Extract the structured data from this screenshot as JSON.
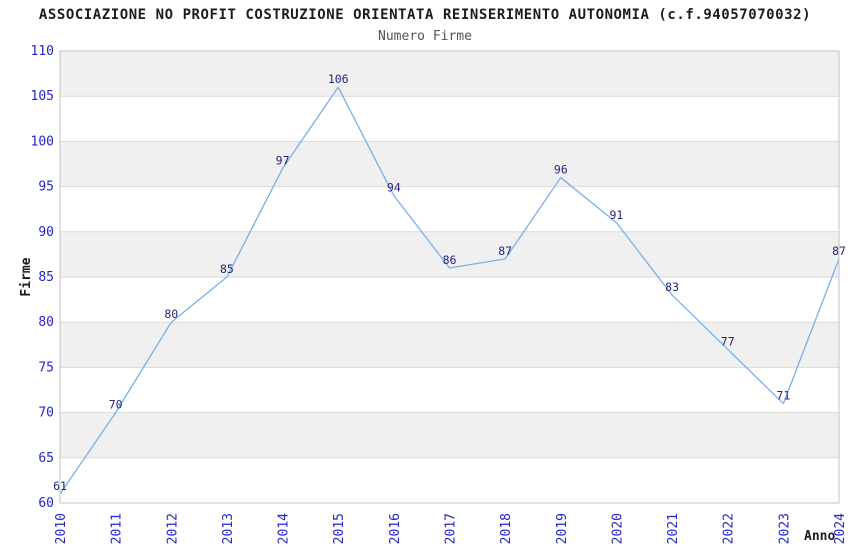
{
  "chart_data": {
    "type": "line",
    "title": "ASSOCIAZIONE NO PROFIT COSTRUZIONE ORIENTATA REINSERIMENTO AUTONOMIA (c.f.94057070032)",
    "subtitle": "Numero Firme",
    "xlabel": "Anno",
    "ylabel": "Firme",
    "x": [
      "2010",
      "2011",
      "2012",
      "2013",
      "2014",
      "2015",
      "2016",
      "2017",
      "2018",
      "2019",
      "2020",
      "2021",
      "2022",
      "2023",
      "2024"
    ],
    "values": [
      61,
      70,
      80,
      85,
      97,
      106,
      94,
      86,
      87,
      96,
      91,
      83,
      77,
      71,
      87
    ],
    "ylim": [
      60,
      110
    ],
    "ytick_step": 5,
    "yticks": [
      60,
      65,
      70,
      75,
      80,
      85,
      90,
      95,
      100,
      105,
      110
    ],
    "grid": true,
    "band_shading": "alternating horizontal bands, gray on odd bands from top",
    "legend": null,
    "colors": {
      "line": "#78b0ea",
      "data_label": "#26267f",
      "tick_label": "#2525cc",
      "band": "#f0f0f0",
      "grid": "#d9d9d9",
      "border": "#c3c3c3",
      "title": "#1c1c1c",
      "subtitle": "#555555",
      "axis_title": "#1c1c1c"
    }
  }
}
